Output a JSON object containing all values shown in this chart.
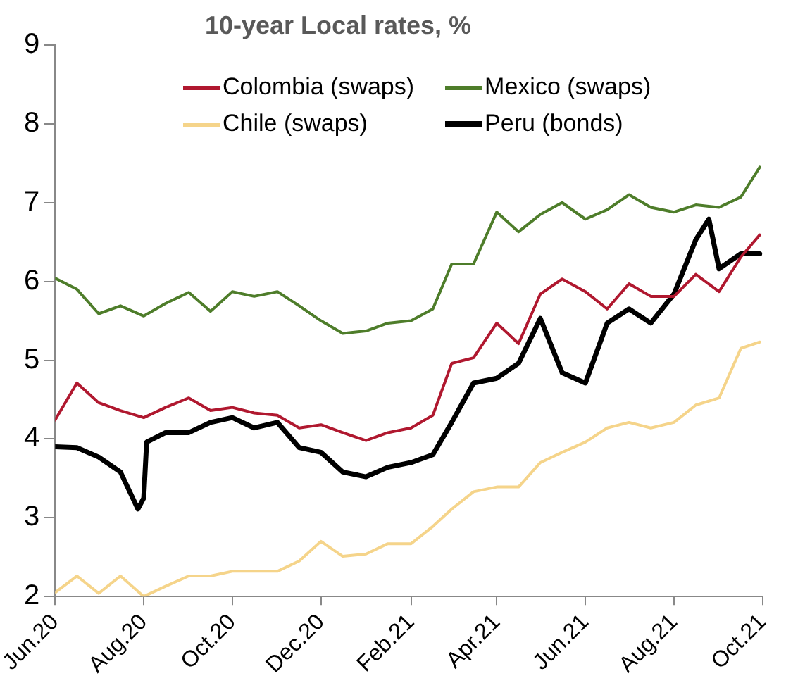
{
  "chart_data": {
    "type": "line",
    "title": "10-year Local rates, %",
    "x": [
      "2020-06-01",
      "2020-06-16",
      "2020-07-01",
      "2020-07-16",
      "2020-08-01",
      "2020-08-16",
      "2020-09-01",
      "2020-09-16",
      "2020-10-01",
      "2020-10-16",
      "2020-11-01",
      "2020-11-16",
      "2020-12-01",
      "2020-12-16",
      "2021-01-01",
      "2021-01-16",
      "2021-02-01",
      "2021-02-16",
      "2021-03-01",
      "2021-03-16",
      "2021-04-01",
      "2021-04-16",
      "2021-05-01",
      "2021-05-16",
      "2021-06-01",
      "2021-06-16",
      "2021-07-01",
      "2021-07-16",
      "2021-08-01",
      "2021-08-16",
      "2021-09-01",
      "2021-09-16",
      "2021-09-29"
    ],
    "series": [
      {
        "name": "Colombia (swaps)",
        "color": "#b0182f",
        "values": [
          4.24,
          4.71,
          4.46,
          4.36,
          4.27,
          4.4,
          4.52,
          4.36,
          4.4,
          4.33,
          4.3,
          4.14,
          4.18,
          4.08,
          3.98,
          4.08,
          4.14,
          4.3,
          4.96,
          5.03,
          5.47,
          5.21,
          5.84,
          6.03,
          5.87,
          5.65,
          5.97,
          5.81,
          5.81,
          6.09,
          5.87,
          6.31,
          6.59
        ]
      },
      {
        "name": "Mexico (swaps)",
        "color": "#4e7d2a",
        "values": [
          6.04,
          5.9,
          5.59,
          5.69,
          5.56,
          5.72,
          5.86,
          5.62,
          5.87,
          5.81,
          5.87,
          5.69,
          5.5,
          5.34,
          5.37,
          5.47,
          5.5,
          5.65,
          6.22,
          6.22,
          6.88,
          6.63,
          6.85,
          7.0,
          6.79,
          6.91,
          7.1,
          6.94,
          6.88,
          6.97,
          6.94,
          7.07,
          7.45
        ]
      },
      {
        "name": "Chile (swaps)",
        "color": "#f5d48a",
        "values": [
          2.05,
          2.26,
          2.04,
          2.26,
          2.0,
          2.13,
          2.26,
          2.26,
          2.32,
          2.32,
          2.32,
          2.45,
          2.7,
          2.51,
          2.54,
          2.67,
          2.67,
          2.89,
          3.11,
          3.33,
          3.39,
          3.39,
          3.7,
          3.83,
          3.96,
          4.14,
          4.21,
          4.14,
          4.21,
          4.43,
          4.52,
          5.15,
          5.23
        ]
      },
      {
        "name": "Peru (bonds)",
        "color": "#000000",
        "x": [
          "2020-06-01",
          "2020-06-16",
          "2020-07-01",
          "2020-07-16",
          "2020-07-28",
          "2020-08-01",
          "2020-08-03",
          "2020-08-16",
          "2020-09-01",
          "2020-09-16",
          "2020-10-01",
          "2020-10-16",
          "2020-11-01",
          "2020-11-16",
          "2020-12-01",
          "2020-12-16",
          "2021-01-01",
          "2021-01-16",
          "2021-02-01",
          "2021-02-16",
          "2021-03-01",
          "2021-03-16",
          "2021-04-01",
          "2021-04-16",
          "2021-05-01",
          "2021-05-16",
          "2021-06-01",
          "2021-06-16",
          "2021-07-01",
          "2021-07-16",
          "2021-08-01",
          "2021-08-16",
          "2021-08-25",
          "2021-09-01",
          "2021-09-16",
          "2021-09-29"
        ],
        "values": [
          3.9,
          3.89,
          3.77,
          3.58,
          3.11,
          3.25,
          3.96,
          4.08,
          4.08,
          4.21,
          4.27,
          4.14,
          4.21,
          3.89,
          3.83,
          3.58,
          3.52,
          3.64,
          3.7,
          3.8,
          4.21,
          4.71,
          4.77,
          4.96,
          5.53,
          4.84,
          4.71,
          5.47,
          5.65,
          5.47,
          5.84,
          6.53,
          6.79,
          6.16,
          6.35,
          6.35
        ]
      }
    ],
    "xlim": [
      "2020-06-01",
      "2021-10-01"
    ],
    "xticks": [
      {
        "value": "2020-06-01",
        "label": "Jun.20"
      },
      {
        "value": "2020-08-01",
        "label": "Aug.20"
      },
      {
        "value": "2020-10-01",
        "label": "Oct.20"
      },
      {
        "value": "2020-12-01",
        "label": "Dec.20"
      },
      {
        "value": "2021-02-01",
        "label": "Feb.21"
      },
      {
        "value": "2021-04-01",
        "label": "Apr.21"
      },
      {
        "value": "2021-06-01",
        "label": "Jun.21"
      },
      {
        "value": "2021-08-01",
        "label": "Aug.21"
      },
      {
        "value": "2021-10-01",
        "label": "Oct.21"
      }
    ],
    "ylim": [
      2,
      9
    ],
    "yticks": [
      2,
      3,
      4,
      5,
      6,
      7,
      8,
      9
    ],
    "grid": false,
    "legend": "top",
    "marker": "none",
    "line_style": "solid"
  }
}
